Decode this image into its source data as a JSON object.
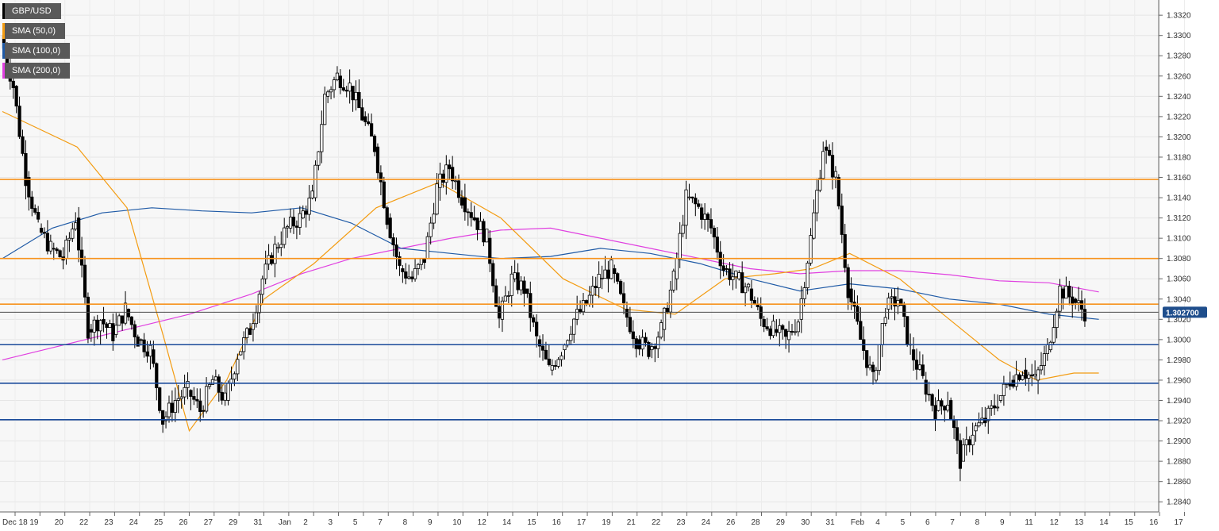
{
  "chart_data": {
    "type": "candlestick",
    "symbol": "GBP/USD",
    "legend": [
      {
        "label": "GBP/USD",
        "color": "#000000"
      },
      {
        "label": "SMA (50,0)",
        "color": "#f39c12"
      },
      {
        "label": "SMA (100,0)",
        "color": "#1f5aa6"
      },
      {
        "label": "SMA (200,0)",
        "color": "#e040e0"
      }
    ],
    "ylim": [
      1.283,
      1.3335
    ],
    "y_ticks": [
      "1.2840",
      "1.2860",
      "1.2880",
      "1.2900",
      "1.2920",
      "1.2940",
      "1.2960",
      "1.2980",
      "1.3000",
      "1.3020",
      "1.3040",
      "1.3060",
      "1.3080",
      "1.3100",
      "1.3120",
      "1.3140",
      "1.3160",
      "1.3180",
      "1.3200",
      "1.3220",
      "1.3240",
      "1.3260",
      "1.3280",
      "1.3300",
      "1.3320"
    ],
    "x_ticks": [
      "Dec 18",
      "19",
      "20",
      "22",
      "23",
      "24",
      "25",
      "26",
      "27",
      "29",
      "31",
      "Jan",
      "2",
      "3",
      "5",
      "7",
      "8",
      "9",
      "10",
      "12",
      "14",
      "15",
      "16",
      "17",
      "19",
      "21",
      "22",
      "23",
      "24",
      "26",
      "28",
      "29",
      "30",
      "31",
      "Feb",
      "4",
      "5",
      "6",
      "7",
      "8",
      "9",
      "11",
      "12",
      "13",
      "14",
      "15",
      "16",
      "17"
    ],
    "current_price": "1.302700",
    "current_price_value": 1.3027,
    "resistance_levels": [
      1.3158,
      1.308,
      1.3035
    ],
    "support_levels": [
      1.2995,
      1.2957,
      1.2921
    ],
    "colors": {
      "resistance": "#f7931e",
      "support": "#1a4a9a",
      "price_line": "#4a4a4a",
      "sma50": "#f39c12",
      "sma100": "#1f5aa6",
      "sma200": "#e040e0",
      "price_badge": "#1f4e8c"
    },
    "close_path": [
      [
        0,
        1.33
      ],
      [
        1,
        1.325
      ],
      [
        2,
        1.316
      ],
      [
        3,
        1.311
      ],
      [
        4,
        1.309
      ],
      [
        5,
        1.308
      ],
      [
        6,
        1.312
      ],
      [
        7,
        1.301
      ],
      [
        8,
        1.302
      ],
      [
        9,
        1.3005
      ],
      [
        10,
        1.303
      ],
      [
        11,
        1.3
      ],
      [
        12,
        1.299
      ],
      [
        13,
        1.292
      ],
      [
        14,
        1.294
      ],
      [
        15,
        1.295
      ],
      [
        16,
        1.293
      ],
      [
        17,
        1.296
      ],
      [
        18,
        1.294
      ],
      [
        19,
        1.2985
      ],
      [
        20,
        1.301
      ],
      [
        21,
        1.306
      ],
      [
        22,
        1.309
      ],
      [
        23,
        1.311
      ],
      [
        24,
        1.312
      ],
      [
        25,
        1.314
      ],
      [
        26,
        1.324
      ],
      [
        27,
        1.326
      ],
      [
        28,
        1.325
      ],
      [
        29,
        1.322
      ],
      [
        30,
        1.319
      ],
      [
        31,
        1.312
      ],
      [
        32,
        1.307
      ],
      [
        33,
        1.306
      ],
      [
        34,
        1.308
      ],
      [
        35,
        1.315
      ],
      [
        36,
        1.317
      ],
      [
        37,
        1.314
      ],
      [
        38,
        1.312
      ],
      [
        39,
        1.31
      ],
      [
        40,
        1.302
      ],
      [
        41,
        1.306
      ],
      [
        42,
        1.305
      ],
      [
        43,
        1.3
      ],
      [
        44,
        1.297
      ],
      [
        45,
        1.299
      ],
      [
        46,
        1.302
      ],
      [
        47,
        1.3035
      ],
      [
        48,
        1.306
      ],
      [
        49,
        1.307
      ],
      [
        50,
        1.303
      ],
      [
        51,
        1.3
      ],
      [
        52,
        1.299
      ],
      [
        53,
        1.301
      ],
      [
        54,
        1.306
      ],
      [
        55,
        1.314
      ],
      [
        56,
        1.313
      ],
      [
        57,
        1.311
      ],
      [
        58,
        1.307
      ],
      [
        59,
        1.306
      ],
      [
        60,
        1.305
      ],
      [
        61,
        1.302
      ],
      [
        62,
        1.301
      ],
      [
        63,
        1.3
      ],
      [
        64,
        1.302
      ],
      [
        65,
        1.31
      ],
      [
        66,
        1.319
      ],
      [
        67,
        1.316
      ],
      [
        68,
        1.305
      ],
      [
        69,
        1.3
      ],
      [
        70,
        1.296
      ],
      [
        71,
        1.303
      ],
      [
        72,
        1.304
      ],
      [
        73,
        1.299
      ],
      [
        74,
        1.296
      ],
      [
        75,
        1.293
      ],
      [
        76,
        1.294
      ],
      [
        77,
        1.288
      ],
      [
        78,
        1.291
      ],
      [
        79,
        1.292
      ],
      [
        80,
        1.294
      ],
      [
        81,
        1.296
      ],
      [
        82,
        1.297
      ],
      [
        83,
        1.296
      ],
      [
        84,
        1.299
      ],
      [
        85,
        1.305
      ],
      [
        86,
        1.304
      ],
      [
        87,
        1.3027
      ]
    ],
    "sma50": [
      [
        0,
        1.3225
      ],
      [
        6,
        1.319
      ],
      [
        10,
        1.313
      ],
      [
        13,
        1.3
      ],
      [
        15,
        1.291
      ],
      [
        18,
        1.296
      ],
      [
        21,
        1.304
      ],
      [
        25,
        1.3075
      ],
      [
        30,
        1.313
      ],
      [
        35,
        1.3155
      ],
      [
        40,
        1.312
      ],
      [
        45,
        1.306
      ],
      [
        50,
        1.303
      ],
      [
        54,
        1.3025
      ],
      [
        58,
        1.306
      ],
      [
        62,
        1.3065
      ],
      [
        65,
        1.307
      ],
      [
        68,
        1.3085
      ],
      [
        72,
        1.306
      ],
      [
        76,
        1.302
      ],
      [
        80,
        1.298
      ],
      [
        83,
        1.296
      ],
      [
        86,
        1.2967
      ],
      [
        88,
        1.2967
      ]
    ],
    "sma100": [
      [
        0,
        1.308
      ],
      [
        4,
        1.311
      ],
      [
        8,
        1.3125
      ],
      [
        12,
        1.313
      ],
      [
        16,
        1.3127
      ],
      [
        20,
        1.3125
      ],
      [
        24,
        1.313
      ],
      [
        28,
        1.3115
      ],
      [
        32,
        1.309
      ],
      [
        36,
        1.3085
      ],
      [
        40,
        1.308
      ],
      [
        44,
        1.3082
      ],
      [
        48,
        1.309
      ],
      [
        52,
        1.3085
      ],
      [
        56,
        1.3075
      ],
      [
        60,
        1.306
      ],
      [
        64,
        1.3048
      ],
      [
        68,
        1.3055
      ],
      [
        72,
        1.305
      ],
      [
        76,
        1.304
      ],
      [
        80,
        1.3035
      ],
      [
        84,
        1.3025
      ],
      [
        88,
        1.302
      ]
    ],
    "sma200": [
      [
        0,
        1.298
      ],
      [
        5,
        1.2995
      ],
      [
        10,
        1.301
      ],
      [
        15,
        1.3025
      ],
      [
        20,
        1.3045
      ],
      [
        24,
        1.3065
      ],
      [
        28,
        1.308
      ],
      [
        32,
        1.309
      ],
      [
        36,
        1.31
      ],
      [
        40,
        1.3108
      ],
      [
        44,
        1.311
      ],
      [
        48,
        1.31
      ],
      [
        52,
        1.309
      ],
      [
        56,
        1.308
      ],
      [
        60,
        1.307
      ],
      [
        64,
        1.3065
      ],
      [
        68,
        1.3068
      ],
      [
        72,
        1.3068
      ],
      [
        76,
        1.3064
      ],
      [
        80,
        1.3058
      ],
      [
        84,
        1.3056
      ],
      [
        88,
        1.3047
      ]
    ]
  }
}
